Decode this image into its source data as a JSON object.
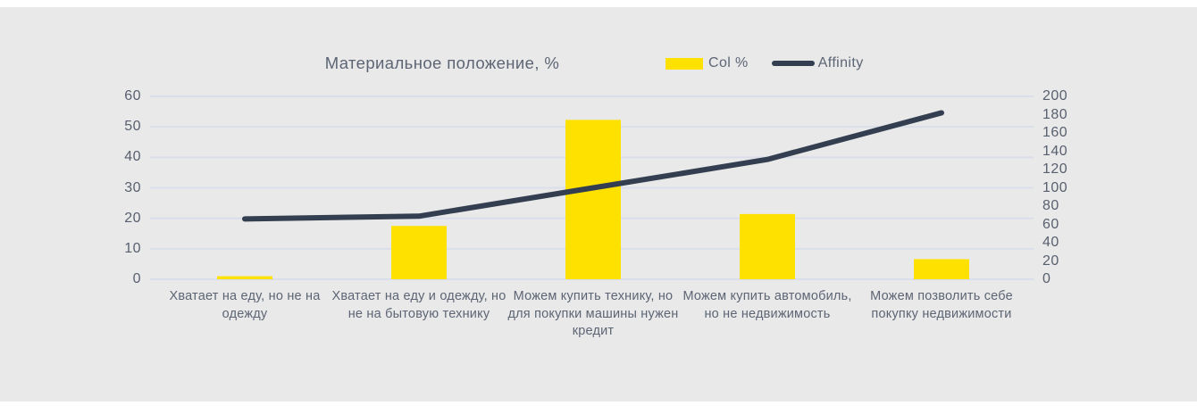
{
  "title": "Материальное положение, %",
  "legend": {
    "items": [
      {
        "label": "Col %",
        "marker": "bar-swatch"
      },
      {
        "label": "Affinity",
        "marker": "line-swatch"
      }
    ]
  },
  "colors": {
    "page_background": "#ffffff",
    "panel_background": "#e9e9e9",
    "bar": "#FFE100",
    "line": "#333F50",
    "gridline": "#D9DEEA",
    "text": "#5D6574"
  },
  "chart_data": {
    "type": "combo",
    "title": "Материальное положение, %",
    "categories": [
      "Хватает на еду, но не на одежду",
      "Хватает на еду и одежду, но не на бытовую технику",
      "Можем купить технику, но для покупки машины нужен кредит",
      "Можем купить автомобиль, но не недвижимость",
      "Можем позволить себе покупку недвижимости"
    ],
    "series": [
      {
        "name": "Col %",
        "type": "bar",
        "axis": "left",
        "color": "#FFE100",
        "values": [
          1,
          17.5,
          52.3,
          21.4,
          6.6
        ]
      },
      {
        "name": "Affinity",
        "type": "line",
        "axis": "right",
        "color": "#333F50",
        "values": [
          66,
          69,
          100,
          131,
          182
        ]
      }
    ],
    "left_axis": {
      "min": 0,
      "max": 60,
      "step": 10,
      "ticks": [
        0,
        10,
        20,
        30,
        40,
        50,
        60
      ]
    },
    "right_axis": {
      "min": 0,
      "max": 200,
      "step": 20,
      "ticks": [
        0,
        20,
        40,
        60,
        80,
        100,
        120,
        140,
        160,
        180,
        200
      ]
    },
    "grid": true,
    "legend_position": "top-right"
  }
}
